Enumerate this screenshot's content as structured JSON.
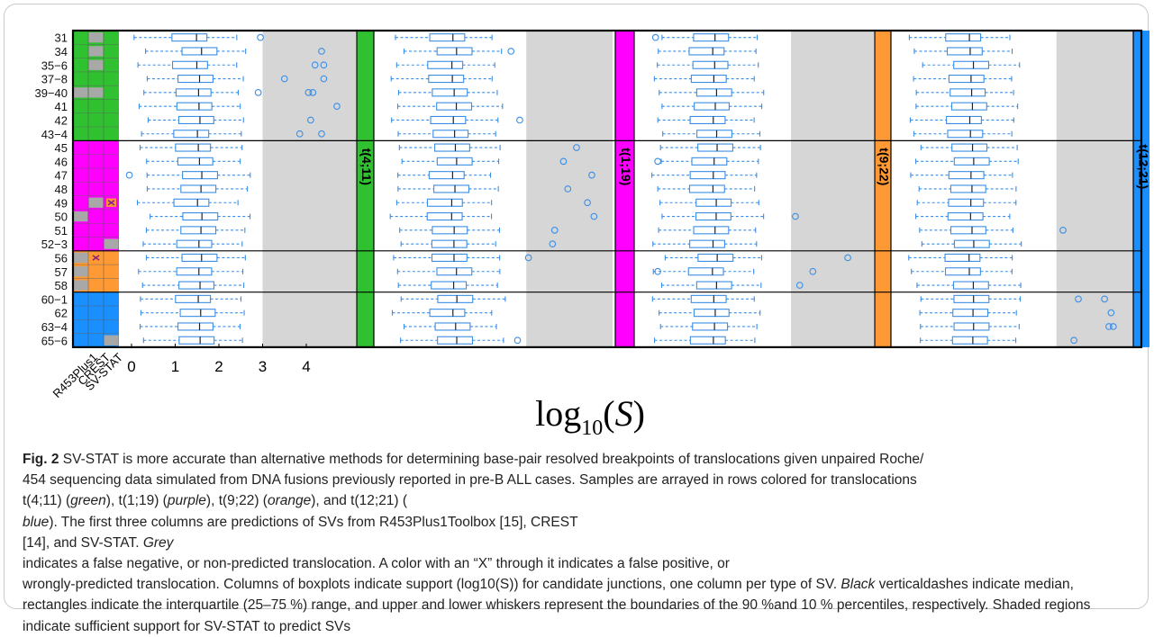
{
  "figure": {
    "row_labels": [
      "31",
      "34",
      "35−6",
      "37−8",
      "39−40",
      "41",
      "42",
      "43−4",
      "45",
      "46",
      "47",
      "48",
      "49",
      "50",
      "51",
      "52−3",
      "56",
      "57",
      "58",
      "60−1",
      "62",
      "63−4",
      "65−6"
    ],
    "method_labels": [
      "R453Plus1",
      "CREST",
      "SV-STAT"
    ],
    "xtick_labels": [
      "0",
      "1",
      "2",
      "3",
      "4"
    ],
    "xaxis_label_base": "log",
    "xaxis_label_sub": "10",
    "xaxis_label_var": "S",
    "translocations": [
      {
        "label": "t(4;11)",
        "color": "#2fc12f",
        "rows": [
          0,
          8
        ]
      },
      {
        "label": "t(1;19)",
        "color": "#ff00ff",
        "rows": [
          8,
          16
        ]
      },
      {
        "label": "t(9;22)",
        "color": "#ff9933",
        "rows": [
          16,
          19
        ]
      },
      {
        "label": "t(12;21)",
        "color": "#1a8fff",
        "rows": [
          19,
          23
        ]
      }
    ],
    "colors": {
      "grey": "#a8a8a8",
      "shade": "#d6d6d6",
      "box": "#3a8ee6",
      "median": "#222222",
      "false_positive_mark": "#8b1a8b"
    },
    "method_matrix_grey_cells": [
      [
        0,
        1
      ],
      [
        1,
        1
      ],
      [
        2,
        1
      ],
      [
        4,
        0
      ],
      [
        4,
        1
      ],
      [
        12,
        1
      ],
      [
        13,
        0
      ],
      [
        15,
        2
      ],
      [
        16,
        0
      ],
      [
        17,
        0
      ],
      [
        18,
        0
      ],
      [
        22,
        2
      ]
    ],
    "method_matrix_false_positive": [
      [
        12,
        2
      ],
      [
        16,
        1
      ]
    ],
    "shade_start_log10_S": [
      3.0,
      3.2,
      3.3,
      3.5
    ],
    "outliers": [
      {
        "panel": 0,
        "row": 0,
        "value": 2.95
      },
      {
        "panel": 0,
        "row": 1,
        "value": 4.35
      },
      {
        "panel": 0,
        "row": 2,
        "value": 4.2
      },
      {
        "panel": 0,
        "row": 2,
        "value": 4.4
      },
      {
        "panel": 0,
        "row": 3,
        "value": 3.5
      },
      {
        "panel": 0,
        "row": 3,
        "value": 4.4
      },
      {
        "panel": 0,
        "row": 4,
        "value": 2.9
      },
      {
        "panel": 0,
        "row": 4,
        "value": 4.05
      },
      {
        "panel": 0,
        "row": 4,
        "value": 4.15
      },
      {
        "panel": 0,
        "row": 5,
        "value": 4.7
      },
      {
        "panel": 0,
        "row": 6,
        "value": 4.1
      },
      {
        "panel": 0,
        "row": 7,
        "value": 3.85
      },
      {
        "panel": 0,
        "row": 7,
        "value": 4.35
      },
      {
        "panel": 0,
        "row": 10,
        "value": -0.05
      },
      {
        "panel": 1,
        "row": 1,
        "value": 2.85
      },
      {
        "panel": 1,
        "row": 6,
        "value": 3.05
      },
      {
        "panel": 1,
        "row": 8,
        "value": 4.35
      },
      {
        "panel": 1,
        "row": 9,
        "value": 4.05
      },
      {
        "panel": 1,
        "row": 10,
        "value": 4.7
      },
      {
        "panel": 1,
        "row": 11,
        "value": 4.15
      },
      {
        "panel": 1,
        "row": 12,
        "value": 4.6
      },
      {
        "panel": 1,
        "row": 13,
        "value": 4.75
      },
      {
        "panel": 1,
        "row": 14,
        "value": 3.85
      },
      {
        "panel": 1,
        "row": 15,
        "value": 3.8
      },
      {
        "panel": 1,
        "row": 16,
        "value": 3.25
      },
      {
        "panel": 1,
        "row": 22,
        "value": 3.0
      },
      {
        "panel": 2,
        "row": 0,
        "value": 0.2
      },
      {
        "panel": 2,
        "row": 9,
        "value": 0.25
      },
      {
        "panel": 2,
        "row": 13,
        "value": 3.4
      },
      {
        "panel": 2,
        "row": 16,
        "value": 4.6
      },
      {
        "panel": 2,
        "row": 17,
        "value": 0.25
      },
      {
        "panel": 2,
        "row": 17,
        "value": 3.8
      },
      {
        "panel": 2,
        "row": 18,
        "value": 3.5
      },
      {
        "panel": 3,
        "row": 14,
        "value": 3.65
      },
      {
        "panel": 3,
        "row": 19,
        "value": 4.0
      },
      {
        "panel": 3,
        "row": 19,
        "value": 4.6
      },
      {
        "panel": 3,
        "row": 20,
        "value": 4.75
      },
      {
        "panel": 3,
        "row": 21,
        "value": 4.7
      },
      {
        "panel": 3,
        "row": 21,
        "value": 4.8
      },
      {
        "panel": 3,
        "row": 22,
        "value": 3.9
      }
    ]
  },
  "caption": {
    "label": "Fig. 2",
    "segments": [
      {
        "t": " SV-STAT is more accurate than alternative methods for determining base-pair resolved breakpoints of translocations given unpaired Roche/"
      },
      {
        "t": "454 sequencing data simulated from DNA fusions previously reported in pre-B ALL cases. Samples are arrayed in rows colored for translocations"
      },
      {
        "t": "t(4;11) ("
      },
      {
        "t": "green",
        "i": true
      },
      {
        "t": "), t(1;19) ("
      },
      {
        "t": "purple",
        "i": true
      },
      {
        "t": "), t(9;22) ("
      },
      {
        "t": "orange",
        "i": true
      },
      {
        "t": "), and t(12;21) ("
      },
      {
        "t": "blue",
        "i": true
      },
      {
        "t": "). The first three columns are predictions of SVs from R453Plus1Toolbox [15], CREST"
      },
      {
        "t": "[14], and SV-STAT. "
      },
      {
        "t": "Grey",
        "i": true
      },
      {
        "t": " indicates a false negative, or non-predicted translocation. A color with an “X” through it indicates a false positive, or"
      },
      {
        "t": "wrongly-predicted translocation. Columns of boxplots indicate support (log10(S)) for candidate junctions, one column per type of SV. "
      },
      {
        "t": "Black",
        "i": true
      },
      {
        "t": " vertical"
      },
      {
        "t": "dashes indicate median, rectangles indicate the interquartile (25–75 %) range, and upper and lower whiskers represent the boundaries of the 90 %"
      },
      {
        "t": "and 10 % percentiles, respectively. Shaded regions indicate sufficient support for SV-STAT to predict SVs"
      }
    ],
    "line_breaks_after_segment": [
      0,
      1,
      8,
      10,
      12,
      13
    ]
  }
}
